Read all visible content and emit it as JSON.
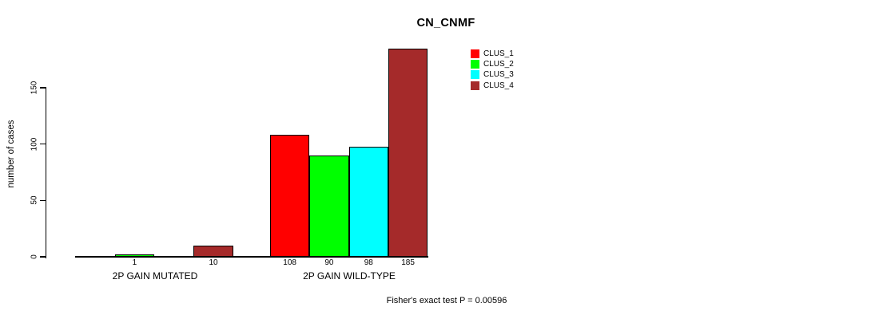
{
  "chart_data": {
    "type": "bar",
    "title": "CN_CNMF",
    "xlabel": "",
    "ylabel": "number of cases",
    "categories": [
      "2P GAIN MUTATED",
      "2P GAIN WILD-TYPE"
    ],
    "series": [
      {
        "name": "CLUS_1",
        "color": "#FF0000",
        "values": [
          0,
          108
        ]
      },
      {
        "name": "CLUS_2",
        "color": "#00FF00",
        "values": [
          1,
          90
        ]
      },
      {
        "name": "CLUS_3",
        "color": "#00FFFF",
        "values": [
          0,
          98
        ]
      },
      {
        "name": "CLUS_4",
        "color": "#A52A2A",
        "values": [
          10,
          185
        ]
      }
    ],
    "bar_labels": [
      [
        "",
        "1",
        "",
        "10"
      ],
      [
        "108",
        "90",
        "98",
        "185"
      ]
    ],
    "yticks": [
      0,
      50,
      100,
      150
    ],
    "ylim": [
      0,
      185
    ],
    "grid": false,
    "legend_position": "right",
    "annotation": "Fisher's exact test P = 0.00596"
  }
}
